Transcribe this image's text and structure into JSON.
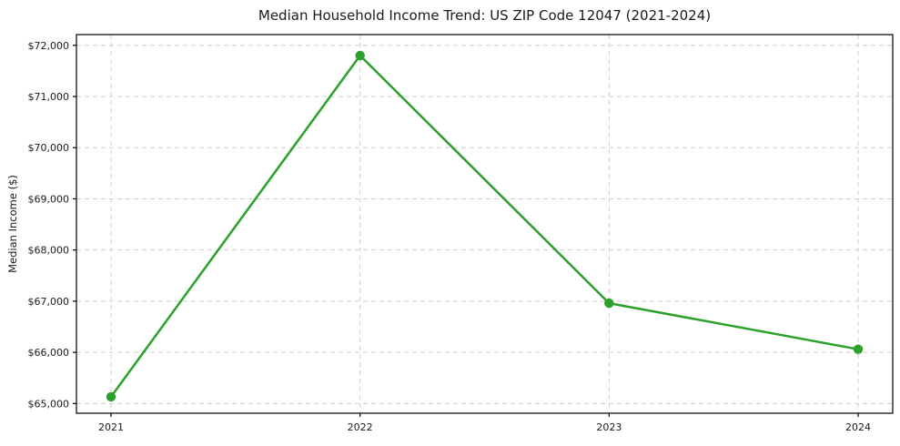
{
  "chart_data": {
    "type": "line",
    "title": "Median Household Income Trend: US ZIP Code 12047 (2021-2024)",
    "xlabel": "",
    "ylabel": "Median Income ($)",
    "x": [
      "2021",
      "2022",
      "2023",
      "2024"
    ],
    "series": [
      {
        "name": "Median Household Income",
        "values": [
          65130,
          71800,
          66960,
          66060
        ]
      }
    ],
    "yticks": [
      65000,
      66000,
      67000,
      68000,
      69000,
      70000,
      71000,
      72000
    ],
    "ytick_labels": [
      "$65,000",
      "$66,000",
      "$67,000",
      "$68,000",
      "$69,000",
      "$70,000",
      "$71,000",
      "$72,000"
    ],
    "ylim": [
      64810,
      72210
    ],
    "grid": true,
    "grid_style": "dashed",
    "legend": "none",
    "marker": "circle"
  },
  "colors": {
    "line": "#2ca02c",
    "marker": "#2ca02c",
    "grid": "#cdcdcd",
    "axis": "#000000",
    "tick_text": "#1a1a1a",
    "background": "#ffffff"
  }
}
